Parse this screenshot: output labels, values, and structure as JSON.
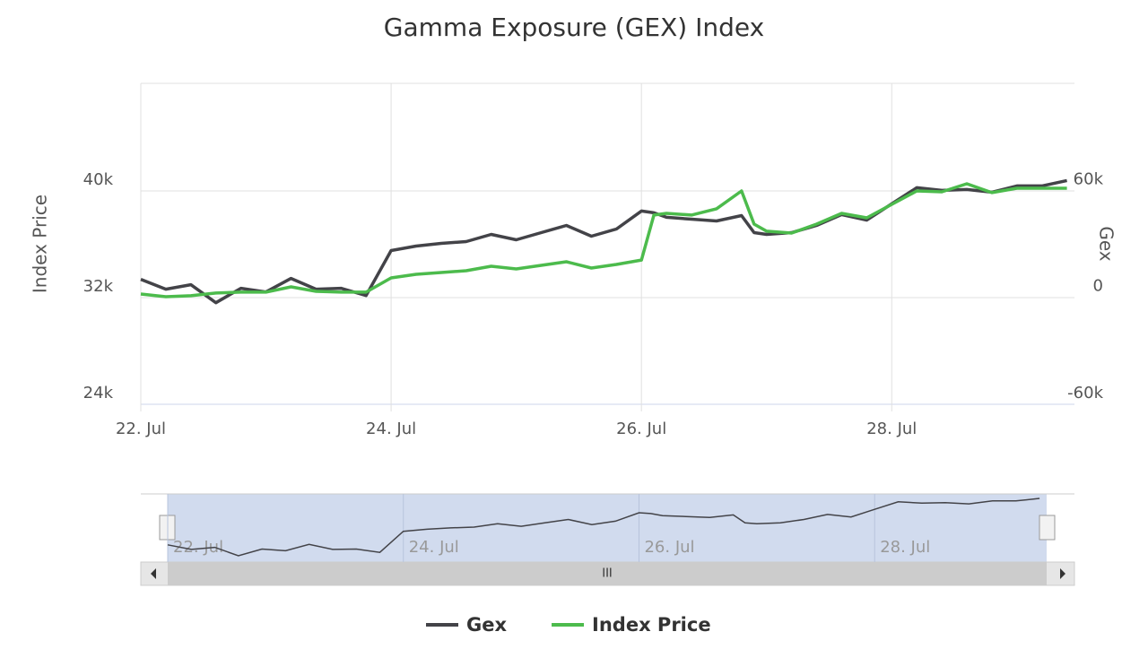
{
  "chart_data": {
    "type": "line",
    "title": "Gamma Exposure (GEX) Index",
    "x": [
      22.0,
      22.2,
      22.4,
      22.6,
      22.8,
      23.0,
      23.2,
      23.4,
      23.6,
      23.8,
      24.0,
      24.2,
      24.4,
      24.6,
      24.8,
      25.0,
      25.2,
      25.4,
      25.6,
      25.8,
      26.0,
      26.1,
      26.2,
      26.4,
      26.6,
      26.8,
      26.9,
      27.0,
      27.2,
      27.4,
      27.6,
      27.8,
      28.0,
      28.2,
      28.4,
      28.6,
      28.8,
      29.0,
      29.2,
      29.4
    ],
    "series": [
      {
        "name": "Gex",
        "color": "#434348",
        "axis": "y2",
        "values": [
          10080,
          4540,
          7060,
          -3020,
          5040,
          3020,
          10580,
          4540,
          5040,
          1010,
          26210,
          28730,
          30240,
          31250,
          35280,
          32260,
          36290,
          40320,
          34270,
          38300,
          48380,
          47380,
          44860,
          43850,
          42840,
          45860,
          36290,
          35280,
          36290,
          40320,
          46370,
          43340,
          52420,
          61490,
          59980,
          60480,
          58970,
          62500,
          62500,
          65520
        ]
      },
      {
        "name": "Index Price",
        "color": "#4cbb4c",
        "values": [
          32270,
          32070,
          32140,
          32340,
          32410,
          32410,
          32810,
          32470,
          32410,
          32410,
          33480,
          33750,
          33880,
          34020,
          34350,
          34150,
          34420,
          34690,
          34220,
          34490,
          34820,
          38190,
          38320,
          38190,
          38660,
          40000,
          37510,
          36980,
          36840,
          37510,
          38320,
          37980,
          38990,
          40000,
          39930,
          40540,
          39870,
          40200,
          40200,
          40200
        ]
      }
    ],
    "xlim": [
      22,
      29.46
    ],
    "xticks": [
      {
        "value": 22,
        "label": "22. Jul"
      },
      {
        "value": 24,
        "label": "24. Jul"
      },
      {
        "value": 26,
        "label": "26. Jul"
      },
      {
        "value": 28,
        "label": "28. Jul"
      }
    ],
    "ylabel": "Index Price",
    "ylim": [
      24000,
      48067
    ],
    "yticks": [
      {
        "value": 24000,
        "label": "24k"
      },
      {
        "value": 32000,
        "label": "32k"
      },
      {
        "value": 40000,
        "label": "40k"
      }
    ],
    "y2label": "Gex",
    "y2lim": [
      -60000,
      120000
    ],
    "y2ticks": [
      {
        "value": -60000,
        "label": "-60k"
      },
      0,
      {
        "value": 60000,
        "label": "60k"
      }
    ],
    "grid": true,
    "legend": "bottom"
  }
}
